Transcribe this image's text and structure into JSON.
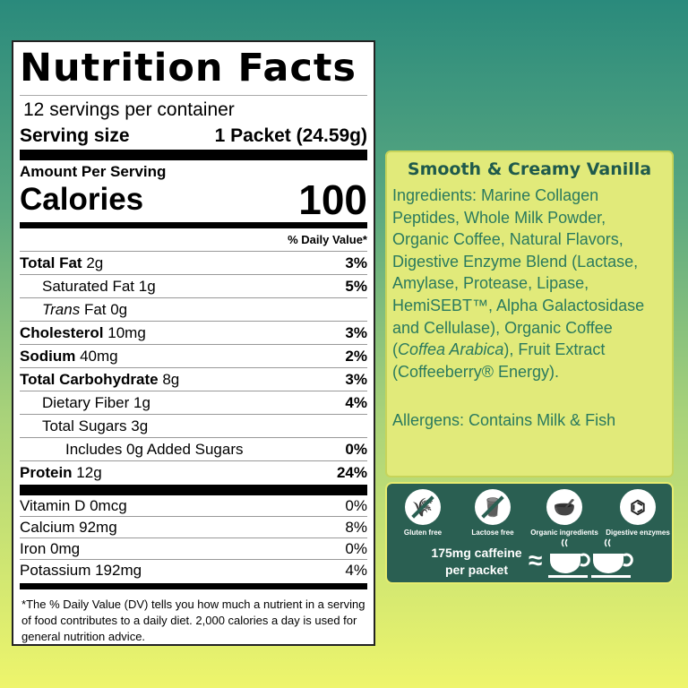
{
  "label": {
    "title": "Nutrition Facts",
    "servings": "12 servings per container",
    "serving_size_label": "Serving size",
    "serving_size_value": "1 Packet (24.59g)",
    "amount_per_serving": "Amount Per Serving",
    "calories_label": "Calories",
    "calories_value": "100",
    "dv_header": "% Daily Value*",
    "rows": [
      {
        "name": "Total Fat",
        "amount": "2g",
        "dv": "3%"
      },
      {
        "name": "Saturated Fat",
        "amount": "1g",
        "dv": "5%"
      },
      {
        "name": "Trans",
        "amount": "Fat 0g",
        "dv": ""
      },
      {
        "name": "Cholesterol",
        "amount": "10mg",
        "dv": "3%"
      },
      {
        "name": "Sodium",
        "amount": "40mg",
        "dv": "2%"
      },
      {
        "name": "Total Carbohydrate",
        "amount": "8g",
        "dv": "3%"
      },
      {
        "name": "Dietary Fiber",
        "amount": "1g",
        "dv": "4%"
      },
      {
        "name": "Total Sugars",
        "amount": "3g",
        "dv": ""
      },
      {
        "name": "Includes 0g Added Sugars",
        "amount": "",
        "dv": "0%"
      },
      {
        "name": "Protein",
        "amount": "12g",
        "dv": "24%"
      }
    ],
    "vitamins": [
      {
        "text": "Vitamin D 0mcg",
        "dv": "0%"
      },
      {
        "text": "Calcium 92mg",
        "dv": "8%"
      },
      {
        "text": "Iron 0mg",
        "dv": "0%"
      },
      {
        "text": "Potassium 192mg",
        "dv": "4%"
      }
    ],
    "footnote": "The % Daily Value (DV) tells you how much a nutrient in a serving of food contributes to a daily diet. 2,000 calories a day is used for general nutrition advice."
  },
  "ingredients": {
    "flavor": "Smooth & Creamy Vanilla",
    "text_a": "Ingredients: Marine Collagen Peptides, Whole Milk Powder, Organic Coffee, Natural Flavors, Digestive Enzyme Blend (Lactase, Amylase, Protease, Lipase, HemiSEBT™, Alpha Galactosidase and Cellulase), Organic Coffee (",
    "text_italic": "Coffea Arabica",
    "text_b": "), Fruit Extract (Coffeeberry® Energy).",
    "allergens": "Allergens: Contains Milk & Fish"
  },
  "badges": {
    "items": [
      {
        "icon": "wheat-crossed-icon",
        "label": "Gluten free"
      },
      {
        "icon": "milk-bottle-crossed-icon",
        "label": "Lactose free"
      },
      {
        "icon": "bowl-leaf-icon",
        "label": "Organic ingredients"
      },
      {
        "icon": "molecule-icon",
        "label": "Digestive enzymes"
      }
    ],
    "caffeine": "175mg caffeine per packet",
    "approx": "≈"
  },
  "colors": {
    "panel_dark": "#2a5f52",
    "panel_light": "#e1ea7a",
    "text_green": "#2a7a5e"
  }
}
